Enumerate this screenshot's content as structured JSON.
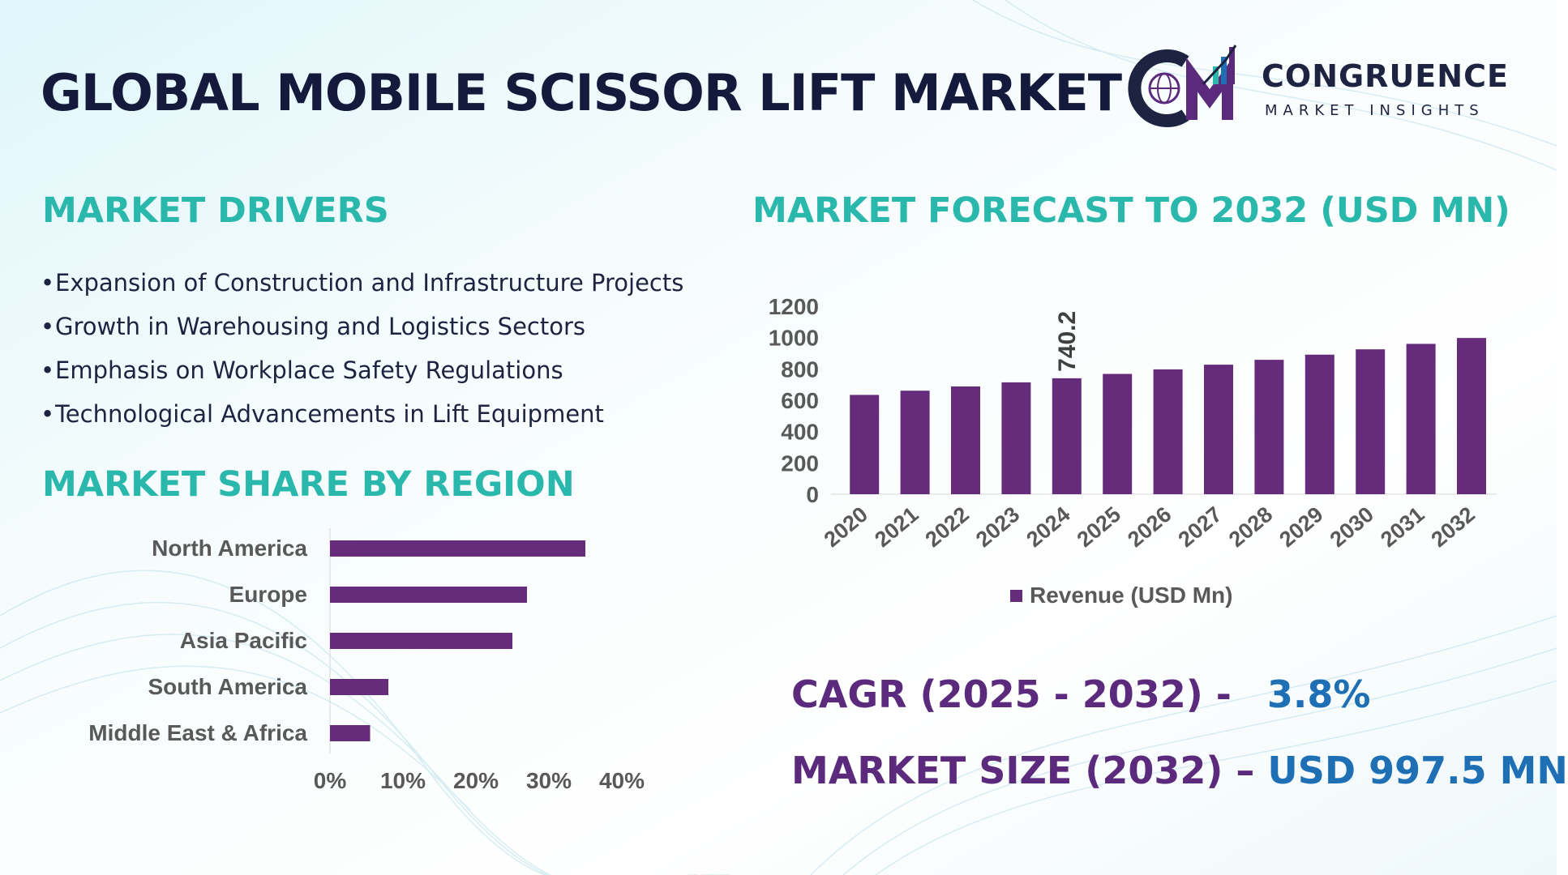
{
  "title": "GLOBAL MOBILE SCISSOR LIFT MARKET",
  "logo": {
    "name": "CONGRUENCE",
    "tagline": "MARKET INSIGHTS"
  },
  "drivers": {
    "heading": "MARKET DRIVERS",
    "items": [
      "Expansion of Construction and Infrastructure Projects",
      "Growth in Warehousing and Logistics Sectors",
      "Emphasis on Workplace Safety Regulations",
      "Technological Advancements in Lift Equipment"
    ]
  },
  "region_heading": "MARKET SHARE BY REGION",
  "forecast_heading": "MARKET FORECAST TO 2032 (USD MN)",
  "stats": {
    "cagr_label": "CAGR (2025 - 2032) -",
    "cagr_value": "3.8%",
    "size_label": "MARKET SIZE (2032) –",
    "size_value": "USD 997.5 MN"
  },
  "colors": {
    "bar": "#642c7a",
    "heading": "#2bb8ac",
    "title": "#141a3c",
    "stat_label": "#5c2a7c",
    "stat_value": "#1f6fb5"
  },
  "chart_data": [
    {
      "type": "bar",
      "orientation": "horizontal",
      "categories": [
        "North America",
        "Europe",
        "Asia Pacific",
        "South America",
        "Middle East & Africa"
      ],
      "values": [
        35,
        27,
        25,
        8,
        5.5
      ],
      "xlim": [
        0,
        40
      ],
      "x_ticks": [
        "0%",
        "10%",
        "20%",
        "30%",
        "40%"
      ],
      "grid": false
    },
    {
      "type": "bar",
      "categories": [
        "2020",
        "2021",
        "2022",
        "2023",
        "2024",
        "2025",
        "2026",
        "2027",
        "2028",
        "2029",
        "2030",
        "2031",
        "2032"
      ],
      "series": [
        {
          "name": "Revenue (USD Mn)",
          "values": [
            634,
            661,
            688,
            714,
            740.2,
            768,
            797,
            827,
            858,
            891,
            925,
            960,
            997.5
          ]
        }
      ],
      "ylim": [
        0,
        1200
      ],
      "y_ticks": [
        "0",
        "200",
        "400",
        "600",
        "800",
        "1000",
        "1200"
      ],
      "data_labels": [
        {
          "category": "2024",
          "text": "740.2"
        }
      ],
      "legend": "bottom",
      "grid": false
    }
  ]
}
